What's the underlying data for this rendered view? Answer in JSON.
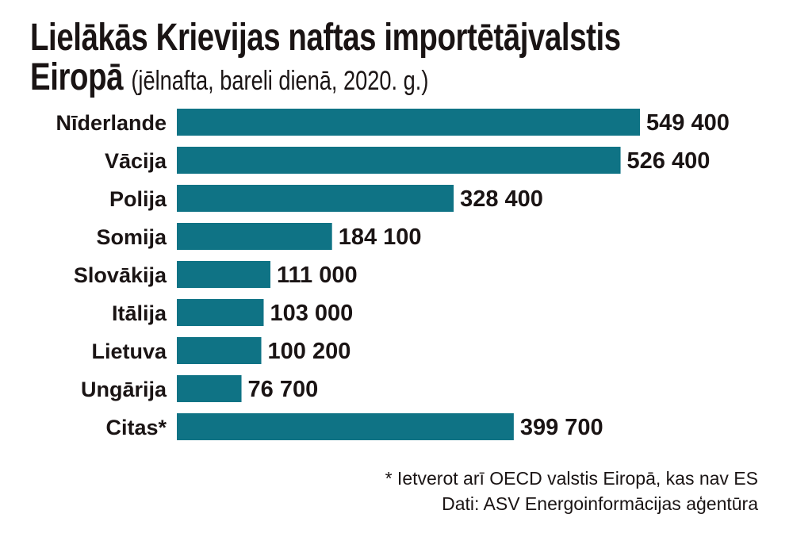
{
  "chart_data": {
    "type": "bar",
    "orientation": "horizontal",
    "title": "Lielākās Krievijas naftas importētājvalstis",
    "title_line2": "Eiropā",
    "subtitle": "(jēlnafta, bareli dienā, 2020. g.)",
    "categories": [
      "Nīderlande",
      "Vācija",
      "Polija",
      "Somija",
      "Slovākija",
      "Itālija",
      "Lietuva",
      "Ungārija",
      "Citas*"
    ],
    "values": [
      549400,
      526400,
      328400,
      184100,
      111000,
      103000,
      100200,
      76700,
      399700
    ],
    "value_labels": [
      "549 400",
      "526 400",
      "328 400",
      "184 100",
      "111 000",
      "103 000",
      "100 200",
      "76 700",
      "399 700"
    ],
    "xlim": [
      0,
      549400
    ],
    "grid": false,
    "bar_color": "#0f7385",
    "footnote": "* Ietverot arī OECD valstis Eiropā, kas nav ES",
    "source": "Dati: ASV Energoinformācijas aģentūra"
  }
}
